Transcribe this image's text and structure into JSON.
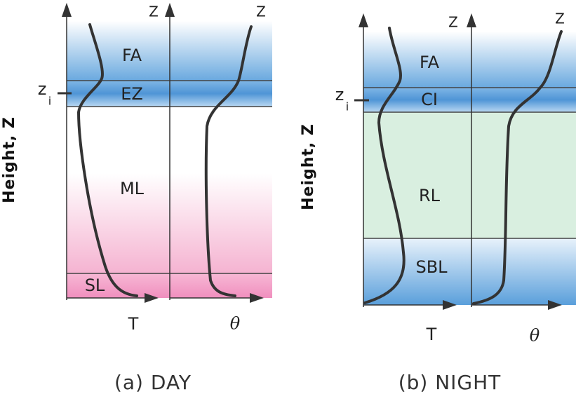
{
  "panels": [
    {
      "y_label": "Height, Z",
      "z_labels": [
        "Z",
        "Z"
      ],
      "zi_label": {
        "base": "z",
        "sub": "i"
      },
      "layers": [
        "FA",
        "EZ",
        "ML",
        "SL"
      ],
      "x_labels": [
        "T",
        "θ"
      ],
      "caption": "(a)  DAY"
    },
    {
      "y_label": "Height, Z",
      "z_labels": [
        "Z",
        "Z"
      ],
      "zi_label": {
        "base": "z",
        "sub": "i"
      },
      "layers": [
        "FA",
        "CI",
        "RL",
        "SBL"
      ],
      "x_labels": [
        "T",
        "θ"
      ],
      "caption": "(b)  NIGHT"
    }
  ]
}
